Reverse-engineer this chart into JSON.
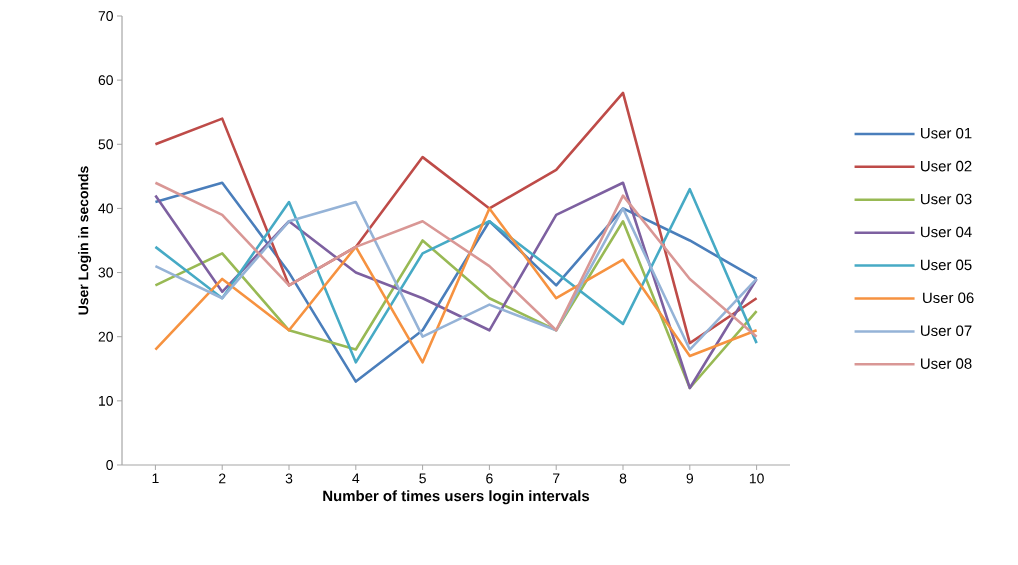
{
  "chart_data": {
    "type": "line",
    "xlabel": "Number of times users login intervals",
    "ylabel": "User Login in seconds",
    "categories": [
      "1",
      "2",
      "3",
      "4",
      "5",
      "6",
      "7",
      "8",
      "9",
      "10"
    ],
    "ylim": [
      0,
      70
    ],
    "yticks": [
      0,
      10,
      20,
      30,
      40,
      50,
      60,
      70
    ],
    "legend": "right",
    "marker": "none",
    "line_style": "solid",
    "series": [
      {
        "name": "User 01",
        "color": "#4a7ebb",
        "values": [
          41,
          44,
          30,
          13,
          21,
          38,
          28,
          40,
          35,
          29
        ]
      },
      {
        "name": "User 02",
        "color": "#be4b48",
        "values": [
          50,
          54,
          28,
          34,
          48,
          40,
          46,
          58,
          19,
          26
        ]
      },
      {
        "name": "User 03",
        "color": "#98b954",
        "values": [
          28,
          33,
          21,
          18,
          35,
          26,
          21,
          38,
          12,
          24
        ]
      },
      {
        "name": "User 04",
        "color": "#7d60a0",
        "values": [
          42,
          27,
          38,
          30,
          26,
          21,
          39,
          44,
          12,
          29
        ]
      },
      {
        "name": "User 05",
        "color": "#46aac5",
        "values": [
          34,
          26,
          41,
          16,
          33,
          38,
          30,
          22,
          43,
          19
        ]
      },
      {
        "name": " User 06",
        "color": "#f69240",
        "values": [
          18,
          29,
          21,
          34,
          16,
          40,
          26,
          32,
          17,
          21
        ]
      },
      {
        "name": "User 07",
        "color": "#95b3d7",
        "values": [
          31,
          26,
          38,
          41,
          20,
          25,
          21,
          40,
          18,
          29
        ]
      },
      {
        "name": "User 08",
        "color": "#d99795",
        "values": [
          44,
          39,
          28,
          34,
          38,
          31,
          21,
          42,
          29,
          20
        ]
      }
    ]
  }
}
